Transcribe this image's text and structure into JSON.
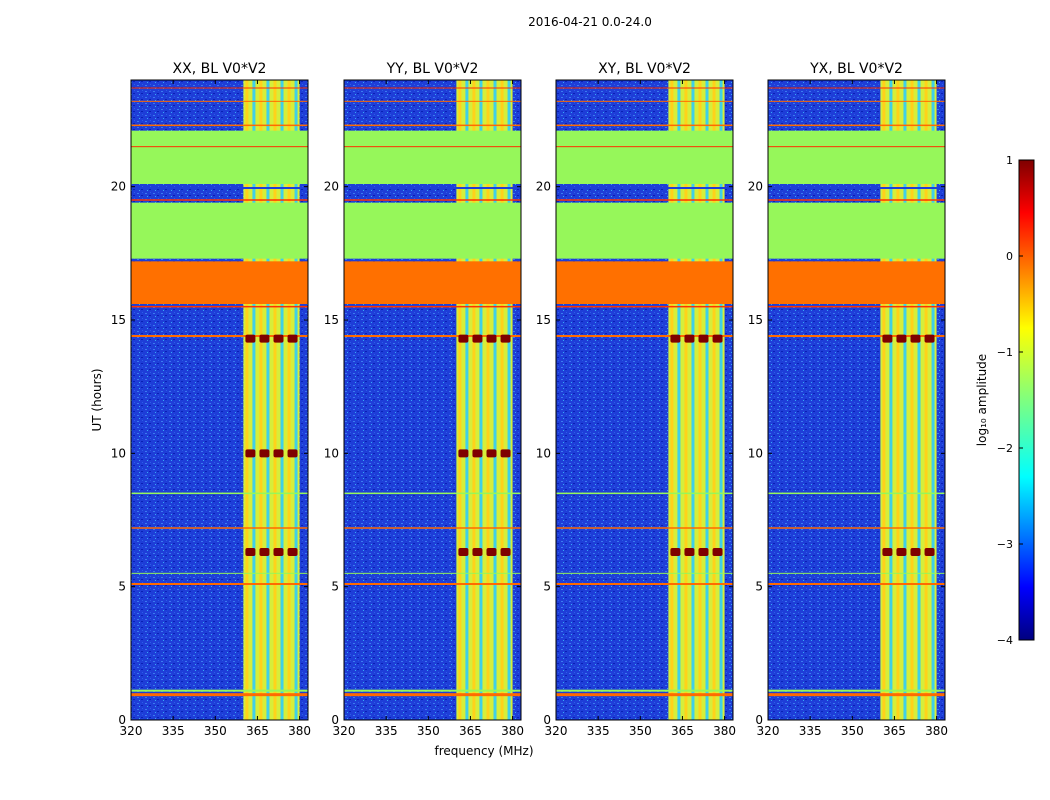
{
  "figure_title": "2016-04-21 0.0-24.0",
  "x_label": "frequency (MHz)",
  "y_label": "UT (hours)",
  "colorbar": {
    "label": "log₁₀ amplitude",
    "ticks": [
      1,
      0,
      -1,
      -2,
      -3,
      -4
    ],
    "tick_labels": [
      "1",
      "0",
      "−1",
      "−2",
      "−3",
      "−4"
    ],
    "range": [
      -4,
      1
    ],
    "colormap": "jet"
  },
  "chart_data": [
    {
      "type": "heatmap",
      "title": "XX, BL V0*V2",
      "xlim": [
        320,
        383
      ],
      "ylim": [
        0,
        24
      ],
      "xticks": [
        320,
        335,
        350,
        365,
        380
      ],
      "yticks": [
        0,
        5,
        10,
        15,
        20
      ],
      "xlabel": "",
      "ylabel": "UT (hours)",
      "band_MHz": [
        360,
        380
      ],
      "strong_burst_UT": [
        14.3,
        10,
        6.3
      ]
    },
    {
      "type": "heatmap",
      "title": "YY, BL V0*V2",
      "xlim": [
        320,
        383
      ],
      "ylim": [
        0,
        24
      ],
      "xticks": [
        320,
        335,
        350,
        365,
        380
      ],
      "yticks": [
        0,
        5,
        10,
        15,
        20
      ],
      "xlabel": "frequency (MHz)",
      "ylabel": "",
      "band_MHz": [
        360,
        380
      ],
      "strong_burst_UT": [
        14.3,
        10,
        6.3
      ]
    },
    {
      "type": "heatmap",
      "title": "XY, BL V0*V2",
      "xlim": [
        320,
        383
      ],
      "ylim": [
        0,
        24
      ],
      "xticks": [
        320,
        335,
        350,
        365,
        380
      ],
      "yticks": [
        0,
        5,
        10,
        15,
        20
      ],
      "xlabel": "",
      "ylabel": "",
      "band_MHz": [
        360,
        380
      ],
      "strong_burst_UT": [
        14.3,
        6.3
      ]
    },
    {
      "type": "heatmap",
      "title": "YX, BL V0*V2",
      "xlim": [
        320,
        383
      ],
      "ylim": [
        0,
        24
      ],
      "xticks": [
        320,
        335,
        350,
        365,
        380
      ],
      "yticks": [
        0,
        5,
        10,
        15,
        20
      ],
      "xlabel": "",
      "ylabel": "",
      "band_MHz": [
        360,
        380
      ],
      "strong_burst_UT": [
        14.3,
        6.3
      ]
    }
  ]
}
